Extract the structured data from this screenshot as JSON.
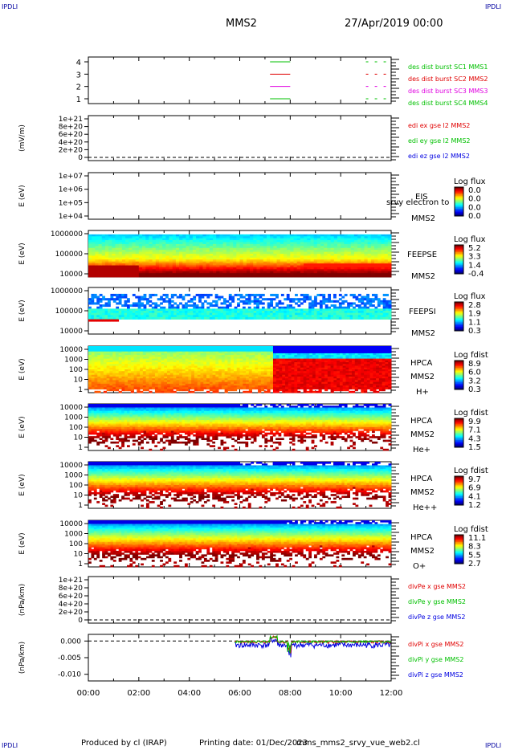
{
  "corner_mark": "IPDLI",
  "header": {
    "title": "MMS2",
    "date": "27/Apr/2019 00:00"
  },
  "footer": {
    "produced": "Produced by cl (IRAP)",
    "printing": "Printing date: 01/Dec/2023",
    "file": "mms_mms2_srvy_vue_web2.cl"
  },
  "x_axis": {
    "ticks": [
      "00:00",
      "02:00",
      "04:00",
      "06:00",
      "08:00",
      "10:00",
      "12:00"
    ],
    "range_hours": [
      0,
      12
    ]
  },
  "chart_data": [
    {
      "type": "line",
      "panel": "burst",
      "yticks": [
        "4",
        "3",
        "2",
        "1"
      ],
      "series": [
        {
          "name": "des dist burst SC1 MMS1",
          "color": "#00c000",
          "segments": [
            [
              7.2,
              8.0
            ],
            [
              11.0,
              11.9
            ]
          ],
          "level": 4
        },
        {
          "name": "des dist burst SC2 MMS2",
          "color": "#e00000",
          "segments": [
            [
              7.2,
              8.0
            ],
            [
              11.0,
              11.9
            ]
          ],
          "level": 3
        },
        {
          "name": "des dist burst SC3 MMS3",
          "color": "#e000e0",
          "segments": [
            [
              7.2,
              8.0
            ],
            [
              11.0,
              11.9
            ]
          ],
          "level": 2
        },
        {
          "name": "des dist burst SC4 MMS4",
          "color": "#00c000",
          "segments": [
            [
              7.2,
              8.0
            ],
            [
              11.0,
              11.9
            ]
          ],
          "level": 1
        }
      ]
    },
    {
      "type": "line",
      "panel": "edi",
      "ylabel": "(mV/m)",
      "yticks": [
        "1e+21",
        "8e+20",
        "6e+20",
        "4e+20",
        "2e+20",
        "0"
      ],
      "series": [
        {
          "name": "edi ex gse l2 MMS2",
          "color": "#e00000"
        },
        {
          "name": "edi ey gse l2 MMS2",
          "color": "#00c000"
        },
        {
          "name": "edi ez gse l2 MMS2",
          "color": "#0000e0"
        }
      ]
    },
    {
      "type": "heatmap",
      "panel": "eis",
      "ylabel": "E (eV)",
      "yticks": [
        "1e+07",
        "1e+06",
        "1e+05",
        "1e+04"
      ],
      "labels": [
        "EIS",
        "srvy electron to",
        "MMS2"
      ],
      "cb_title": "Log flux",
      "cb_ticks": [
        "0.0",
        "0.0",
        "0.0",
        "0.0"
      ]
    },
    {
      "type": "heatmap",
      "panel": "feepse",
      "ylabel": "E (eV)",
      "yticks": [
        "1000000",
        "100000",
        "10000"
      ],
      "labels": [
        "FEEPSE",
        "MMS2"
      ],
      "cb_title": "Log flux",
      "cb_ticks": [
        "5.2",
        "3.3",
        "1.4",
        "-0.4"
      ]
    },
    {
      "type": "heatmap",
      "panel": "feepsi",
      "ylabel": "E (eV)",
      "yticks": [
        "1000000",
        "100000",
        "10000"
      ],
      "labels": [
        "FEEPSI",
        "MMS2"
      ],
      "cb_title": "Log flux",
      "cb_ticks": [
        "2.8",
        "1.9",
        "1.1",
        "0.3"
      ]
    },
    {
      "type": "heatmap",
      "panel": "hpca_h",
      "ylabel": "E (eV)",
      "yticks": [
        "10000",
        "1000",
        "100",
        "10",
        "1"
      ],
      "labels": [
        "HPCA",
        "MMS2",
        "H+"
      ],
      "cb_title": "Log fdist",
      "cb_ticks": [
        "8.9",
        "6.0",
        "3.2",
        "0.3"
      ]
    },
    {
      "type": "heatmap",
      "panel": "hpca_he",
      "ylabel": "E (eV)",
      "yticks": [
        "10000",
        "1000",
        "100",
        "10",
        "1"
      ],
      "labels": [
        "HPCA",
        "MMS2",
        "He+"
      ],
      "cb_title": "Log fdist",
      "cb_ticks": [
        "9.9",
        "7.1",
        "4.3",
        "1.5"
      ]
    },
    {
      "type": "heatmap",
      "panel": "hpca_hepp",
      "ylabel": "E (eV)",
      "yticks": [
        "10000",
        "1000",
        "100",
        "10",
        "1"
      ],
      "labels": [
        "HPCA",
        "MMS2",
        "He++"
      ],
      "cb_title": "Log fdist",
      "cb_ticks": [
        "9.7",
        "6.9",
        "4.1",
        "1.2"
      ]
    },
    {
      "type": "heatmap",
      "panel": "hpca_o",
      "ylabel": "E (eV)",
      "yticks": [
        "10000",
        "1000",
        "100",
        "10",
        "1"
      ],
      "labels": [
        "HPCA",
        "MMS2",
        "O+"
      ],
      "cb_title": "Log fdist",
      "cb_ticks": [
        "11.1",
        "8.3",
        "5.5",
        "2.7"
      ]
    },
    {
      "type": "line",
      "panel": "divpe",
      "ylabel": "(nPa/km)",
      "yticks": [
        "1e+21",
        "8e+20",
        "6e+20",
        "4e+20",
        "2e+20",
        "0"
      ],
      "series": [
        {
          "name": "divPe x gse MMS2",
          "color": "#e00000"
        },
        {
          "name": "divPe y gse MMS2",
          "color": "#00c000"
        },
        {
          "name": "divPe z gse MMS2",
          "color": "#0000e0"
        }
      ]
    },
    {
      "type": "line",
      "panel": "divpi",
      "ylabel": "(nPa/km)",
      "yticks": [
        "0.000",
        "-0.005",
        "-0.010"
      ],
      "ylim": [
        -0.012,
        0.002
      ],
      "series": [
        {
          "name": "divPi x gse MMS2",
          "color": "#e00000"
        },
        {
          "name": "divPi y gse MMS2",
          "color": "#00c000"
        },
        {
          "name": "divPi z gse MMS2",
          "color": "#0000e0"
        }
      ]
    }
  ]
}
